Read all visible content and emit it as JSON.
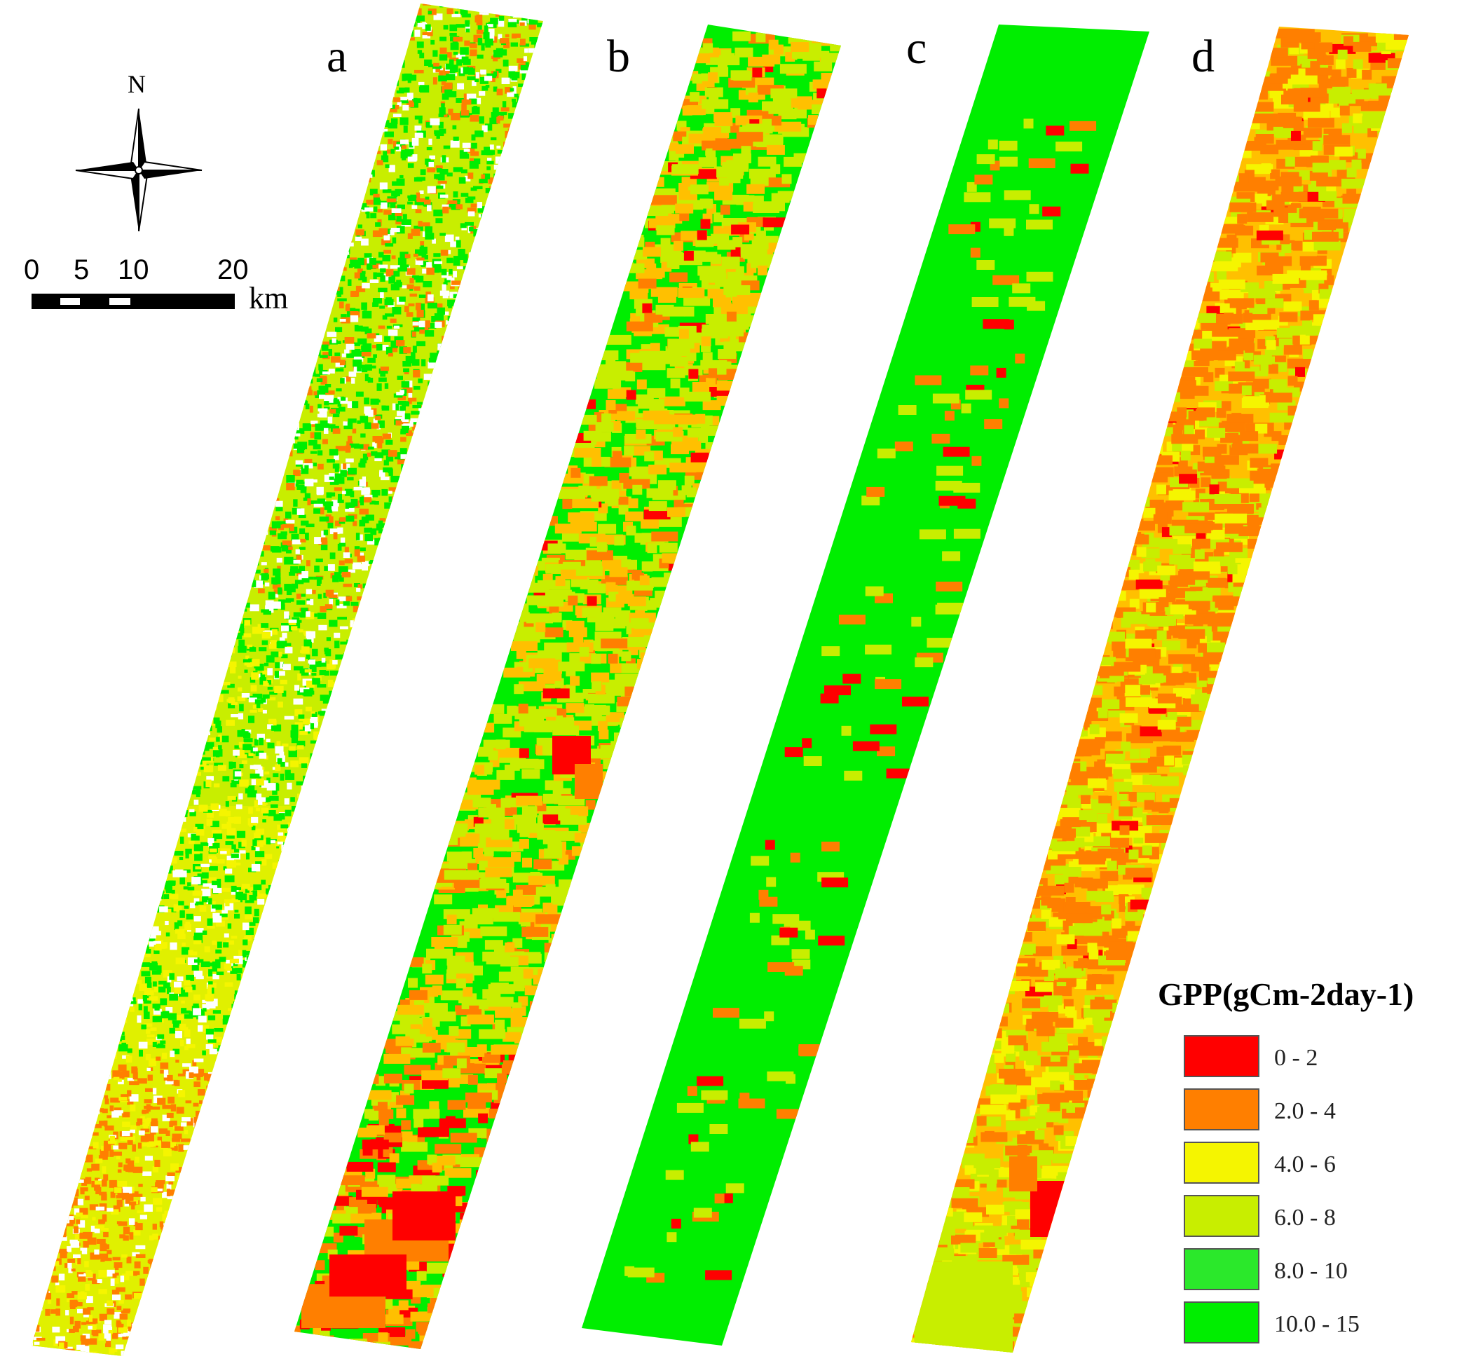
{
  "panels": [
    {
      "label": "a",
      "pattern": "fine"
    },
    {
      "label": "b",
      "pattern": "coarse"
    },
    {
      "label": "c",
      "pattern": "uniform"
    },
    {
      "label": "d",
      "pattern": "coarse"
    }
  ],
  "north_arrow": {
    "label": "N"
  },
  "scale_bar": {
    "ticks": [
      "0",
      "5",
      "10",
      "20"
    ],
    "unit": "km"
  },
  "legend": {
    "title": "GPP(gCm-2day-1)",
    "classes": [
      {
        "label": "0 - 2",
        "color": "#ff0000"
      },
      {
        "label": "2.0 - 4",
        "color": "#ff7f00"
      },
      {
        "label": "4.0 - 6",
        "color": "#f5f500"
      },
      {
        "label": "6.0 - 8",
        "color": "#c8ee00"
      },
      {
        "label": "8.0 - 10",
        "color": "#2be82b"
      },
      {
        "label": "10.0 - 15",
        "color": "#00ee00"
      }
    ]
  },
  "colors": {
    "red": "#ff0000",
    "orange": "#ff7f00",
    "light_orange": "#ffc000",
    "yellow": "#f5f500",
    "yellow_green": "#c8ee00",
    "green": "#00ee00",
    "white": "#ffffff"
  }
}
